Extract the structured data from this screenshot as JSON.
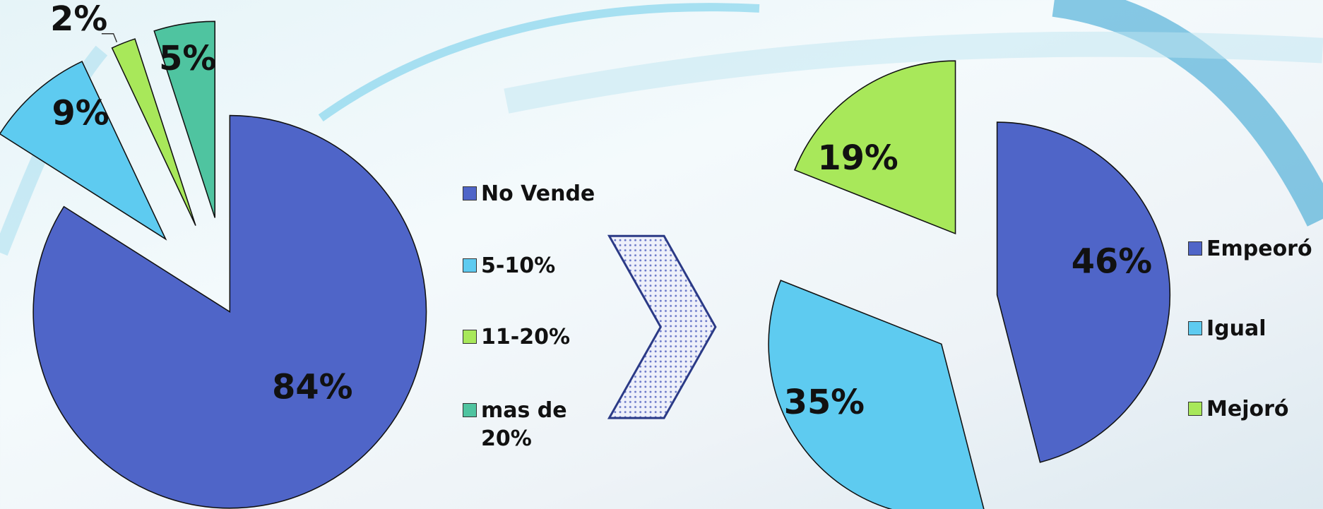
{
  "chart_data": [
    {
      "type": "pie",
      "categories": [
        "No Vende",
        "5-10%",
        "11-20%",
        "mas de 20%"
      ],
      "values": [
        84,
        9,
        2,
        5
      ],
      "value_labels": [
        "84%",
        "9%",
        "2%",
        "5%"
      ],
      "colors": [
        "#4f65c8",
        "#5ecbf0",
        "#a8e85a",
        "#4fc4a0"
      ]
    },
    {
      "type": "pie",
      "categories": [
        "Empeoró",
        "Igual",
        "Mejoró"
      ],
      "values": [
        46,
        35,
        19
      ],
      "value_labels": [
        "46%",
        "35%",
        "19%"
      ],
      "colors": [
        "#4f65c8",
        "#5ecbf0",
        "#a8e85a"
      ]
    }
  ]
}
